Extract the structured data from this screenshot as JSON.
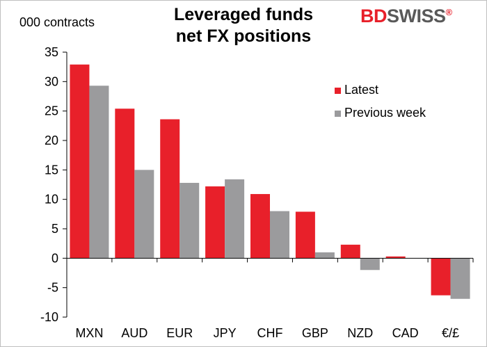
{
  "chart_data": {
    "type": "bar",
    "title_lines": [
      "Leveraged funds",
      "net FX positions"
    ],
    "ylabel": "000 contracts",
    "categories": [
      "MXN",
      "AUD",
      "EUR",
      "JPY",
      "CHF",
      "GBP",
      "NZD",
      "CAD",
      "€/£"
    ],
    "series": [
      {
        "name": "Latest",
        "color": "#e8202a",
        "values": [
          32.9,
          25.4,
          23.6,
          12.2,
          10.9,
          7.9,
          2.3,
          0.3,
          -6.3
        ]
      },
      {
        "name": "Previous week",
        "color": "#9b9b9d",
        "values": [
          29.3,
          15.0,
          12.8,
          13.4,
          8.0,
          1.0,
          -2.0,
          0.0,
          -6.9
        ]
      }
    ],
    "ylim": [
      -10,
      35
    ],
    "yticks": [
      35,
      30,
      25,
      20,
      15,
      10,
      5,
      0,
      -5,
      -10
    ],
    "legend_position": "upper-right",
    "grid": false
  },
  "logo": {
    "part1": "BD",
    "part2": "SWISS",
    "mark": "®"
  }
}
